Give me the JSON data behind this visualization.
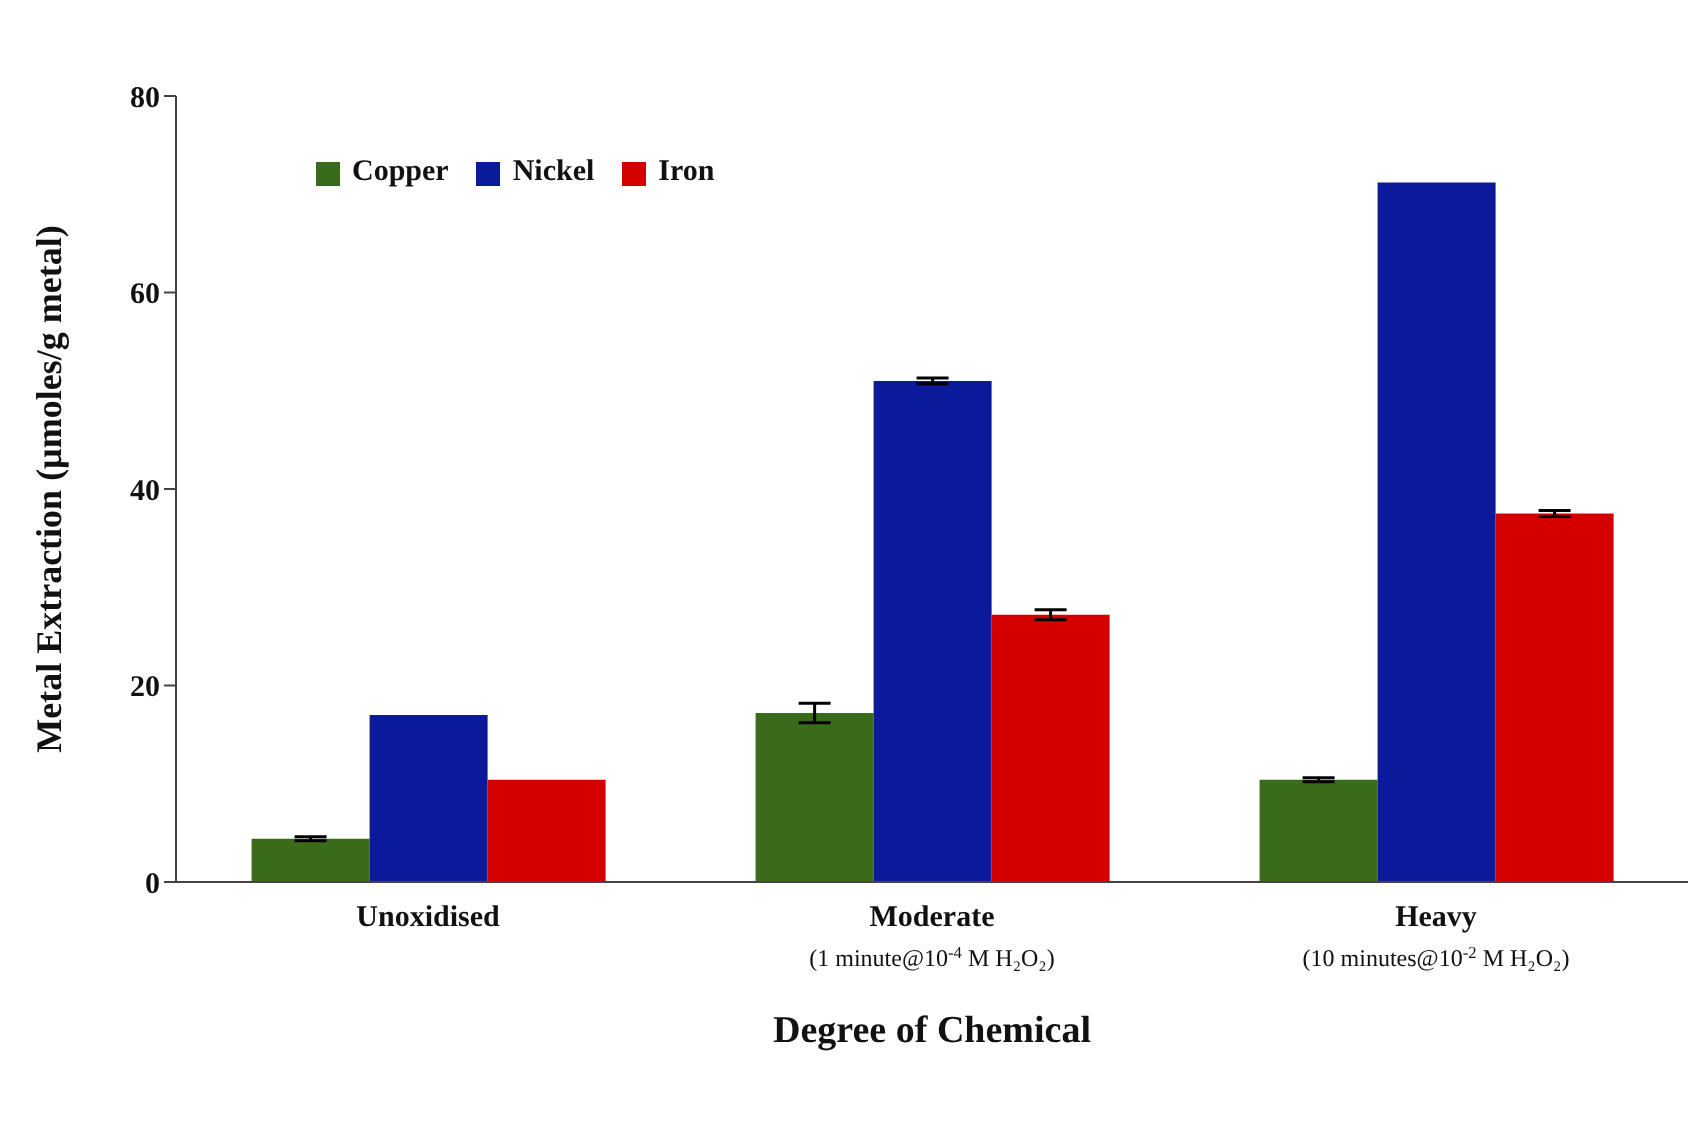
{
  "chart_data": {
    "type": "bar",
    "categories": [
      "Unoxidised",
      "Moderate\n(1 minute@10$^{-4}$ M H₂O₂)",
      "Heavy\n(10 minutes@10$^{-2}$ M H₂O₂)"
    ],
    "series": [
      {
        "name": "Copper",
        "color": "#3a6b1a",
        "values": [
          4.4,
          17.2,
          10.4
        ],
        "errors": [
          0.2,
          1.0,
          0.2
        ]
      },
      {
        "name": "Nickel",
        "color": "#0a1a9a",
        "values": [
          17.0,
          51.0,
          71.2
        ],
        "errors": [
          null,
          0.3,
          null
        ]
      },
      {
        "name": "Iron",
        "color": "#d40000",
        "values": [
          10.4,
          27.2,
          37.5
        ],
        "errors": [
          null,
          0.5,
          0.3
        ]
      }
    ],
    "xlabel": "Degree of Chemical",
    "ylabel": "Metal Extraction  (µmoles/g metal)",
    "ylim": [
      0,
      80
    ],
    "yticks": [
      0,
      20,
      40,
      60,
      80
    ],
    "grid": false,
    "legend": "top left"
  }
}
